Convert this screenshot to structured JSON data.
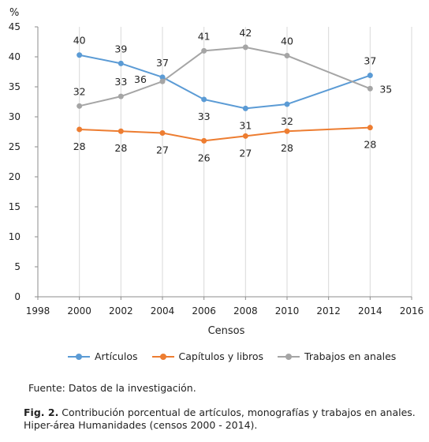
{
  "chart_data": {
    "type": "line",
    "ylabel": "%",
    "xlabel": "Censos",
    "ylim": [
      0,
      45
    ],
    "xlim": [
      1998,
      2016
    ],
    "yticks": [
      0,
      5,
      10,
      15,
      20,
      25,
      30,
      35,
      40,
      45
    ],
    "xticks": [
      1998,
      2000,
      2002,
      2004,
      2006,
      2008,
      2010,
      2012,
      2014,
      2016
    ],
    "grid": "vertical",
    "legend_position": "bottom",
    "series": [
      {
        "name": "Artículos",
        "color": "#5B9BD5",
        "x": [
          2000,
          2002,
          2004,
          2006,
          2008,
          2010,
          2014
        ],
        "values": [
          40.3,
          38.9,
          36.6,
          32.9,
          31.4,
          32.1,
          36.9
        ],
        "labels": [
          "40",
          "39",
          "37",
          "33",
          "31",
          "32",
          "37"
        ]
      },
      {
        "name": "Capítulos y libros",
        "color": "#ED7D31",
        "x": [
          2000,
          2002,
          2004,
          2006,
          2008,
          2010,
          2014
        ],
        "values": [
          27.9,
          27.6,
          27.3,
          26.0,
          26.8,
          27.6,
          28.2
        ],
        "labels": [
          "28",
          "28",
          "27",
          "26",
          "27",
          "28",
          "28"
        ]
      },
      {
        "name": "Trabajos en anales",
        "color": "#A5A5A5",
        "x": [
          2000,
          2002,
          2004,
          2006,
          2008,
          2010,
          2014
        ],
        "values": [
          31.8,
          33.4,
          35.9,
          41.0,
          41.6,
          40.2,
          34.7
        ],
        "labels": [
          "32",
          "33",
          "36",
          "41",
          "42",
          "40",
          "35"
        ]
      }
    ]
  },
  "source_text": "Fuente: Datos de la investigación.",
  "caption": {
    "label": "Fig. 2.",
    "text": " Contribución porcentual de artículos, monografías y trabajos en anales. Hiper-área Humanidades (censos 2000 - 2014)."
  }
}
